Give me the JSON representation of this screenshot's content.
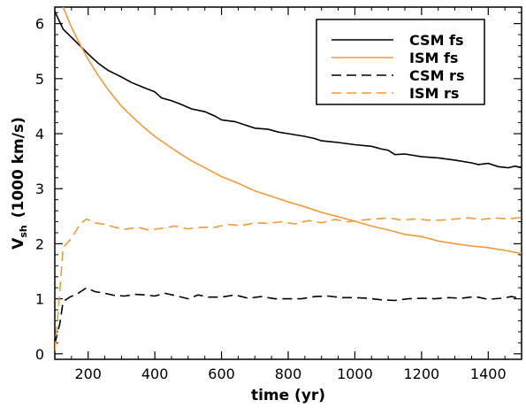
{
  "chart_data": {
    "type": "line",
    "xlabel": "time (yr)",
    "ylabel_main": "V",
    "ylabel_sub": "sh",
    "ylabel_rest": "(1000 km/s)",
    "xlim": [
      100,
      1500
    ],
    "ylim": [
      -0.1,
      6.3
    ],
    "xticks": [
      200,
      400,
      600,
      800,
      1000,
      1200,
      1400
    ],
    "yticks": [
      0,
      1,
      2,
      3,
      4,
      5,
      6
    ],
    "legend_position": "top-right",
    "grid": false,
    "series": [
      {
        "name": "CSM fs",
        "color": "#000000",
        "dash": "solid",
        "points": [
          [
            100,
            6.22
          ],
          [
            125,
            5.9
          ],
          [
            150,
            5.75
          ],
          [
            175,
            5.6
          ],
          [
            200,
            5.45
          ],
          [
            230,
            5.28
          ],
          [
            260,
            5.15
          ],
          [
            300,
            5.03
          ],
          [
            330,
            4.93
          ],
          [
            370,
            4.83
          ],
          [
            400,
            4.76
          ],
          [
            420,
            4.65
          ],
          [
            450,
            4.6
          ],
          [
            480,
            4.53
          ],
          [
            510,
            4.45
          ],
          [
            550,
            4.4
          ],
          [
            580,
            4.32
          ],
          [
            600,
            4.25
          ],
          [
            640,
            4.22
          ],
          [
            670,
            4.16
          ],
          [
            700,
            4.1
          ],
          [
            740,
            4.08
          ],
          [
            770,
            4.03
          ],
          [
            800,
            4.0
          ],
          [
            850,
            3.95
          ],
          [
            880,
            3.91
          ],
          [
            900,
            3.87
          ],
          [
            950,
            3.84
          ],
          [
            1000,
            3.8
          ],
          [
            1050,
            3.77
          ],
          [
            1080,
            3.72
          ],
          [
            1100,
            3.7
          ],
          [
            1120,
            3.62
          ],
          [
            1150,
            3.63
          ],
          [
            1200,
            3.58
          ],
          [
            1250,
            3.56
          ],
          [
            1300,
            3.52
          ],
          [
            1350,
            3.47
          ],
          [
            1370,
            3.44
          ],
          [
            1400,
            3.46
          ],
          [
            1430,
            3.4
          ],
          [
            1460,
            3.38
          ],
          [
            1480,
            3.41
          ],
          [
            1500,
            3.38
          ]
        ]
      },
      {
        "name": "ISM fs",
        "color": "#f39a37",
        "dash": "solid",
        "points": [
          [
            125,
            6.3
          ],
          [
            150,
            5.93
          ],
          [
            175,
            5.63
          ],
          [
            200,
            5.35
          ],
          [
            230,
            5.06
          ],
          [
            260,
            4.8
          ],
          [
            300,
            4.5
          ],
          [
            330,
            4.32
          ],
          [
            370,
            4.1
          ],
          [
            400,
            3.95
          ],
          [
            450,
            3.74
          ],
          [
            500,
            3.54
          ],
          [
            550,
            3.38
          ],
          [
            600,
            3.22
          ],
          [
            650,
            3.1
          ],
          [
            700,
            2.96
          ],
          [
            750,
            2.86
          ],
          [
            800,
            2.76
          ],
          [
            850,
            2.67
          ],
          [
            900,
            2.57
          ],
          [
            950,
            2.49
          ],
          [
            1000,
            2.41
          ],
          [
            1050,
            2.32
          ],
          [
            1100,
            2.25
          ],
          [
            1150,
            2.17
          ],
          [
            1200,
            2.13
          ],
          [
            1250,
            2.05
          ],
          [
            1300,
            2.0
          ],
          [
            1350,
            1.96
          ],
          [
            1400,
            1.93
          ],
          [
            1450,
            1.88
          ],
          [
            1500,
            1.82
          ]
        ]
      },
      {
        "name": "CSM rs",
        "color": "#000000",
        "dash": "long-dash",
        "points": [
          [
            100,
            0.18
          ],
          [
            115,
            0.55
          ],
          [
            125,
            0.95
          ],
          [
            145,
            1.03
          ],
          [
            170,
            1.1
          ],
          [
            195,
            1.2
          ],
          [
            220,
            1.13
          ],
          [
            250,
            1.1
          ],
          [
            280,
            1.06
          ],
          [
            310,
            1.05
          ],
          [
            340,
            1.08
          ],
          [
            370,
            1.07
          ],
          [
            400,
            1.05
          ],
          [
            430,
            1.1
          ],
          [
            460,
            1.06
          ],
          [
            500,
            1.0
          ],
          [
            530,
            1.07
          ],
          [
            560,
            1.03
          ],
          [
            600,
            1.03
          ],
          [
            640,
            1.07
          ],
          [
            680,
            1.01
          ],
          [
            720,
            1.04
          ],
          [
            760,
            1.0
          ],
          [
            800,
            1.0
          ],
          [
            840,
            1.0
          ],
          [
            880,
            1.04
          ],
          [
            920,
            1.05
          ],
          [
            960,
            1.02
          ],
          [
            1000,
            1.02
          ],
          [
            1040,
            1.01
          ],
          [
            1080,
            0.98
          ],
          [
            1120,
            0.97
          ],
          [
            1160,
            1.0
          ],
          [
            1200,
            1.01
          ],
          [
            1240,
            1.0
          ],
          [
            1280,
            1.02
          ],
          [
            1320,
            1.01
          ],
          [
            1360,
            1.04
          ],
          [
            1400,
            0.99
          ],
          [
            1440,
            1.01
          ],
          [
            1470,
            1.04
          ],
          [
            1500,
            1.0
          ]
        ]
      },
      {
        "name": "ISM rs",
        "color": "#f39a37",
        "dash": "long-dash",
        "points": [
          [
            100,
            0.05
          ],
          [
            112,
            0.9
          ],
          [
            125,
            1.93
          ],
          [
            150,
            2.1
          ],
          [
            175,
            2.35
          ],
          [
            195,
            2.45
          ],
          [
            220,
            2.38
          ],
          [
            250,
            2.35
          ],
          [
            280,
            2.3
          ],
          [
            310,
            2.26
          ],
          [
            350,
            2.3
          ],
          [
            380,
            2.25
          ],
          [
            420,
            2.28
          ],
          [
            460,
            2.32
          ],
          [
            500,
            2.27
          ],
          [
            540,
            2.3
          ],
          [
            580,
            2.3
          ],
          [
            620,
            2.35
          ],
          [
            660,
            2.33
          ],
          [
            700,
            2.38
          ],
          [
            740,
            2.37
          ],
          [
            780,
            2.4
          ],
          [
            820,
            2.36
          ],
          [
            860,
            2.42
          ],
          [
            900,
            2.38
          ],
          [
            940,
            2.44
          ],
          [
            980,
            2.4
          ],
          [
            1020,
            2.43
          ],
          [
            1060,
            2.45
          ],
          [
            1100,
            2.47
          ],
          [
            1140,
            2.43
          ],
          [
            1180,
            2.45
          ],
          [
            1220,
            2.43
          ],
          [
            1260,
            2.43
          ],
          [
            1300,
            2.45
          ],
          [
            1340,
            2.47
          ],
          [
            1380,
            2.44
          ],
          [
            1420,
            2.47
          ],
          [
            1460,
            2.45
          ],
          [
            1500,
            2.48
          ]
        ]
      }
    ]
  }
}
